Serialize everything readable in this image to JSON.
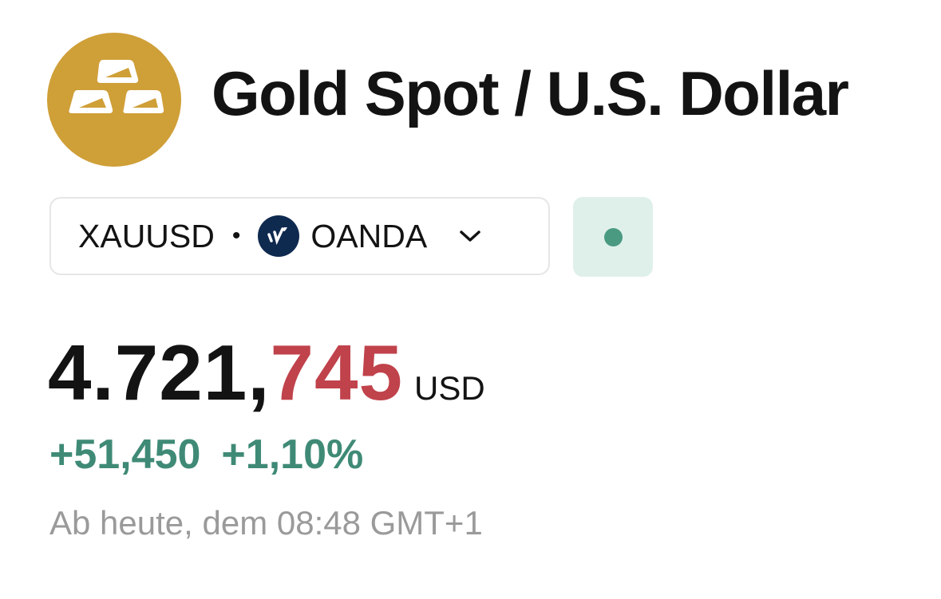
{
  "header": {
    "title": "Gold Spot / U.S. Dollar",
    "logo_icon": "gold-bars-icon",
    "logo_color": "#cf9f38"
  },
  "selector": {
    "symbol": "XAUUSD",
    "separator": "•",
    "broker": "OANDA",
    "broker_icon": "oanda-logo-icon",
    "chevron_icon": "chevron-down-icon"
  },
  "status": {
    "indicator_color": "#4a9a82",
    "icon": "market-status-dot-icon"
  },
  "quote": {
    "price_main": "4.721,",
    "price_tail": "745",
    "currency": "USD",
    "change_abs": "+51,450",
    "change_pct": "+1,10%",
    "timestamp": "Ab heute, dem 08:48 GMT+1",
    "up_color": "#3f8a76",
    "tail_color": "#c0424b"
  }
}
